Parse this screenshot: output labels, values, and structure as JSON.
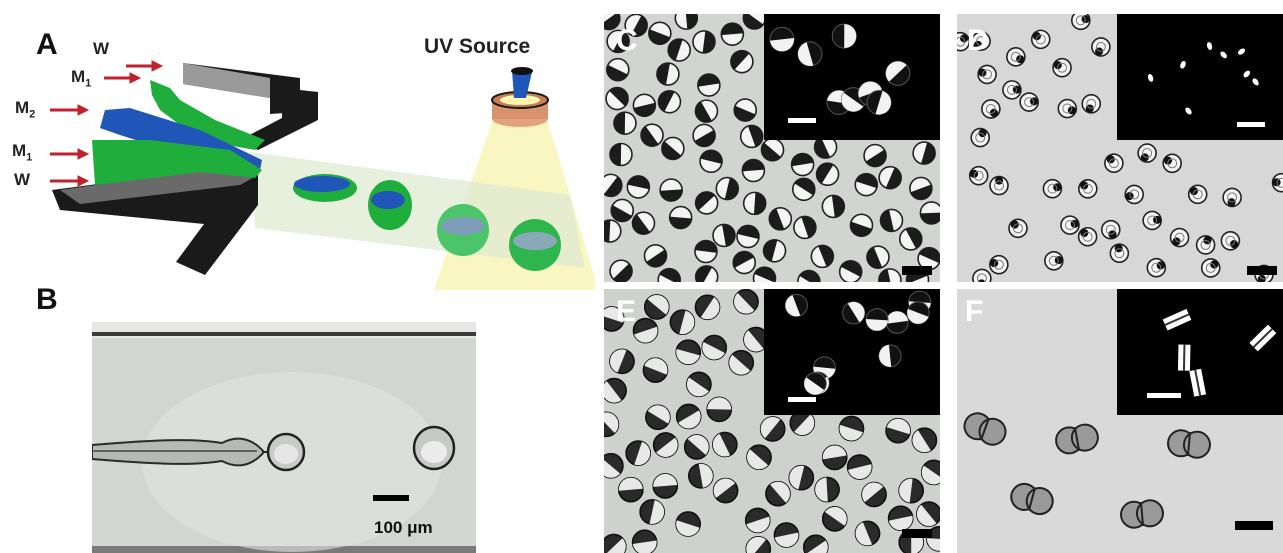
{
  "panels": {
    "a": {
      "letter": "A",
      "uv_label": "UV Source",
      "inlets": [
        {
          "name": "W",
          "sub": ""
        },
        {
          "name": "M",
          "sub": "1"
        },
        {
          "name": "M",
          "sub": "2"
        },
        {
          "name": "M",
          "sub": "1"
        },
        {
          "name": "W",
          "sub": ""
        }
      ]
    },
    "b": {
      "letter": "B",
      "scale_label": "100 μm"
    },
    "c": {
      "letter": "C"
    },
    "d": {
      "letter": "D"
    },
    "e": {
      "letter": "E"
    },
    "f": {
      "letter": "F"
    }
  },
  "colors": {
    "channel": "#1a1a1a",
    "fluid_outer": "#1fae3c",
    "fluid_inner": "#1f56b8",
    "arrow": "#c0212a",
    "uv_glow": "#f6f2a8",
    "photo_bg": "#d9d9d9"
  }
}
